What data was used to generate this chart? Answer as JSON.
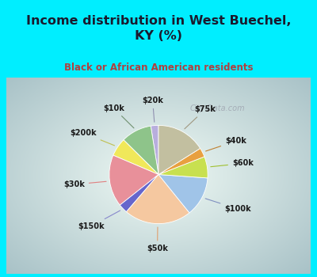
{
  "title": "Income distribution in West Buechel,\nKY (%)",
  "subtitle": "Black or African American residents",
  "labels": [
    "$20k",
    "$10k",
    "$200k",
    "$30k",
    "$150k",
    "$50k",
    "$100k",
    "$60k",
    "$40k",
    "$75k"
  ],
  "sizes": [
    2.5,
    10,
    6,
    17,
    3,
    22,
    13,
    7,
    3,
    16
  ],
  "colors": [
    "#b8aedd",
    "#8ec48a",
    "#f0e85a",
    "#e8909a",
    "#6666cc",
    "#f5c8a0",
    "#a0c4e8",
    "#c8e050",
    "#e8a040",
    "#c2bfa0"
  ],
  "bg_top": "#00eeff",
  "bg_chart_outer": "#a8e8c0",
  "bg_chart_inner": "#f0faf5",
  "title_color": "#1a1a2e",
  "subtitle_color": "#b04040",
  "watermark": "City-Data.com",
  "label_color": "#1a1a1a",
  "line_colors": [
    "#9090b0",
    "#709070",
    "#c0c050",
    "#e08080",
    "#8888cc",
    "#e0a070",
    "#8090c0",
    "#a0c030",
    "#c08030",
    "#a09880"
  ]
}
